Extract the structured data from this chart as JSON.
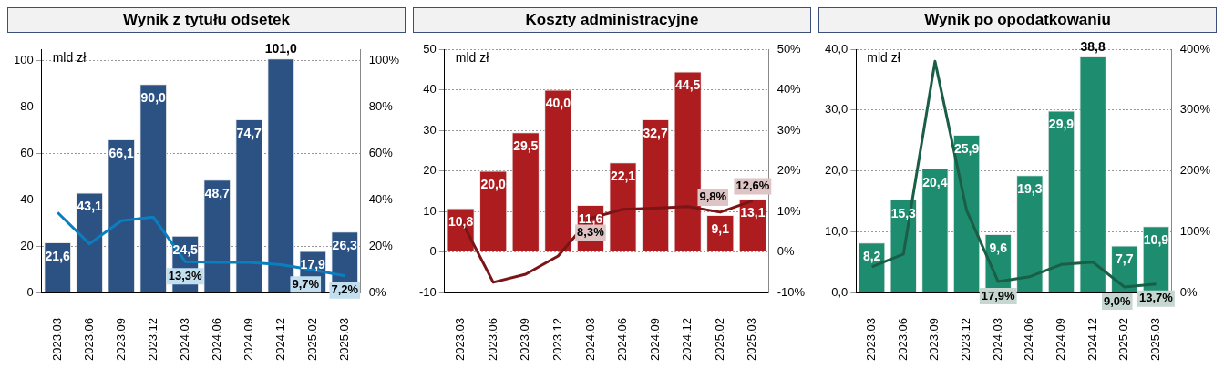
{
  "chart_data": [
    {
      "type": "bar",
      "title": "Wynik z tytułu odsetek",
      "ylabel": "mld zł",
      "categories": [
        "2023.03",
        "2023.06",
        "2023.09",
        "2023.12",
        "2024.03",
        "2024.06",
        "2024.09",
        "2024.12",
        "2025.02",
        "2025.03"
      ],
      "series": [
        {
          "color": "#2b5283",
          "values": [
            21.6,
            43.1,
            66.1,
            90.0,
            24.5,
            48.7,
            74.7,
            101.0,
            17.9,
            26.3
          ],
          "value_labels": [
            "21,6",
            "43,1",
            "66,1",
            "90,0",
            "24,5",
            "48,7",
            "74,7",
            "101,0",
            "17,9",
            "26,3"
          ]
        },
        {
          "type": "line",
          "axis": "y2",
          "color": "#0a7fc0",
          "values": [
            34.5,
            21,
            31,
            32.5,
            13.3,
            13,
            13,
            12,
            9.7,
            7.2
          ],
          "value_labels": [
            null,
            null,
            null,
            null,
            "13,3%",
            null,
            null,
            null,
            "9,7%",
            "7,2%"
          ]
        }
      ],
      "ylim": [
        0,
        105
      ],
      "yticks": [
        0,
        20,
        40,
        60,
        80,
        100
      ],
      "y2lim": [
        0,
        105
      ],
      "y2ticks": [
        {
          "value": 0,
          "label": "0%"
        },
        {
          "value": 20,
          "label": "20%"
        },
        {
          "value": 40,
          "label": "40%"
        },
        {
          "value": 60,
          "label": "60%"
        },
        {
          "value": 80,
          "label": "80%"
        },
        {
          "value": 100,
          "label": "100%"
        }
      ],
      "grid": "y"
    },
    {
      "type": "bar",
      "title": "Koszty administracyjne",
      "ylabel": "mld zł",
      "categories": [
        "2023.03",
        "2023.06",
        "2023.09",
        "2023.12",
        "2024.03",
        "2024.06",
        "2024.09",
        "2024.12",
        "2025.02",
        "2025.03"
      ],
      "series": [
        {
          "color": "#ad1c1f",
          "values": [
            10.8,
            20.0,
            29.5,
            40.0,
            11.6,
            22.1,
            32.7,
            44.5,
            9.1,
            13.1
          ],
          "value_labels": [
            "10,8",
            "20,0",
            "29,5",
            "40,0",
            "11,6",
            "22,1",
            "32,7",
            "44,5",
            "9,1",
            "13,1"
          ]
        },
        {
          "type": "line",
          "axis": "y2",
          "color": "#7b1416",
          "values": [
            8,
            -7.5,
            -5.5,
            -1,
            8.3,
            10.5,
            10.8,
            11.2,
            9.8,
            12.6
          ],
          "value_labels": [
            null,
            null,
            null,
            null,
            "8,3%",
            null,
            null,
            null,
            "9,8%",
            "12,6%"
          ]
        }
      ],
      "ylim": [
        -10,
        50
      ],
      "yticks": [
        -10,
        0,
        10,
        20,
        30,
        40,
        50
      ],
      "y2lim": [
        -10,
        50
      ],
      "y2ticks": [
        {
          "value": -10,
          "label": "-10%"
        },
        {
          "value": 0,
          "label": "0%"
        },
        {
          "value": 10,
          "label": "10%"
        },
        {
          "value": 20,
          "label": "20%"
        },
        {
          "value": 30,
          "label": "30%"
        },
        {
          "value": 40,
          "label": "40%"
        },
        {
          "value": 50,
          "label": "50%"
        }
      ],
      "grid": "y"
    },
    {
      "type": "bar",
      "title": "Wynik po opodatkowaniu",
      "ylabel": "mld zł",
      "categories": [
        "2023.03",
        "2023.06",
        "2023.09",
        "2023.12",
        "2024.03",
        "2024.06",
        "2024.09",
        "2024.12",
        "2025.02",
        "2025.03"
      ],
      "series": [
        {
          "color": "#1e8c6e",
          "values": [
            8.2,
            15.3,
            20.4,
            25.9,
            9.6,
            19.3,
            29.9,
            38.8,
            7.7,
            10.9
          ],
          "value_labels": [
            "8,2",
            "15,3",
            "20,4",
            "25,9",
            "9,6",
            "19,3",
            "29,9",
            "38,8",
            "7,7",
            "10,9"
          ]
        },
        {
          "type": "line",
          "axis": "y2",
          "color": "#1a5e46",
          "values": [
            42,
            63,
            380,
            135,
            17.9,
            26,
            46,
            50,
            9.0,
            13.7
          ],
          "value_labels": [
            null,
            null,
            null,
            null,
            "17,9%",
            null,
            null,
            null,
            "9,0%",
            "13,7%"
          ]
        }
      ],
      "ylim": [
        0,
        40
      ],
      "yticks": [
        {
          "value": 0,
          "label": "0,0"
        },
        {
          "value": 10,
          "label": "10,0"
        },
        {
          "value": 20,
          "label": "20,0"
        },
        {
          "value": 30,
          "label": "30,0"
        },
        {
          "value": 40,
          "label": "40,0"
        }
      ],
      "y2lim": [
        0,
        400
      ],
      "y2ticks": [
        {
          "value": 0,
          "label": "0%"
        },
        {
          "value": 100,
          "label": "100%"
        },
        {
          "value": 200,
          "label": "200%"
        },
        {
          "value": 300,
          "label": "300%"
        },
        {
          "value": 400,
          "label": "400%"
        }
      ],
      "grid": "y"
    }
  ]
}
